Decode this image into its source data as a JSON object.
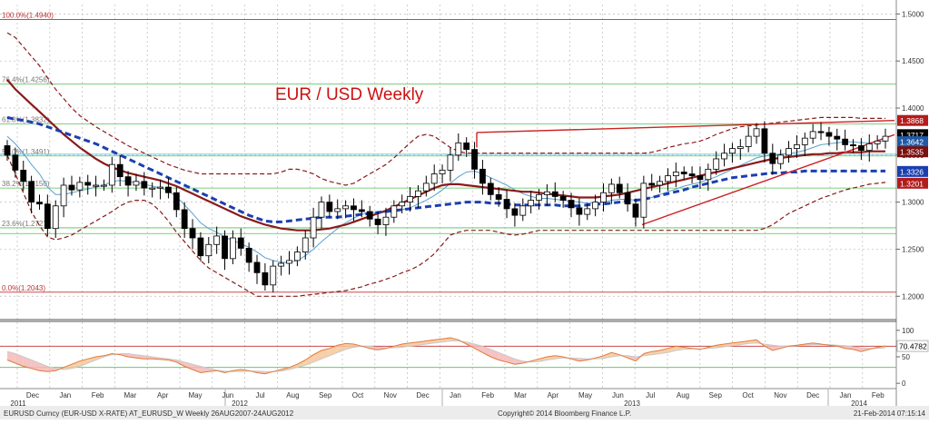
{
  "chart_data": [
    {
      "type": "candlestick",
      "title": "EUR / USD Weekly",
      "x_axis": {
        "months": [
          "Dec",
          "Jan",
          "Feb",
          "Mar",
          "Apr",
          "May",
          "Jun",
          "Jul",
          "Aug",
          "Sep",
          "Oct",
          "Nov",
          "Dec",
          "Jan",
          "Feb",
          "Mar",
          "Apr",
          "May",
          "Jun",
          "Jul",
          "Aug",
          "Sep",
          "Oct",
          "Nov",
          "Dec",
          "Jan",
          "Feb"
        ],
        "years": [
          "2011",
          "2012",
          "2013",
          "2014"
        ]
      },
      "y_axis": {
        "range": [
          1.18,
          1.51
        ],
        "ticks": [
          "1.5000",
          "1.4500",
          "1.4000",
          "1.3500",
          "1.3000",
          "1.2500",
          "1.2000"
        ]
      },
      "fib_levels": [
        {
          "label": "100.0%(1.4940)",
          "value": 1.494
        },
        {
          "label": "76.4%(1.4256)",
          "value": 1.4256
        },
        {
          "label": "61.8%(1.3832)",
          "value": 1.3832
        },
        {
          "label": "50.0%(1.3491)",
          "value": 1.3491
        },
        {
          "label": "38.2%(1.3150)",
          "value": 1.315
        },
        {
          "label": "23.6%(1.2727)",
          "value": 1.2727
        },
        {
          "label": "0.0%(1.2043)",
          "value": 1.2043
        }
      ],
      "price_labels": [
        {
          "text": "1.3868",
          "value": 1.3868,
          "bg": "#b31c1c"
        },
        {
          "text": "1.3717",
          "value": 1.3717,
          "bg": "#000000"
        },
        {
          "text": "1.3642",
          "value": 1.3642,
          "bg": "#1e5aa8"
        },
        {
          "text": "1.3535",
          "value": 1.3535,
          "bg": "#7a1010"
        },
        {
          "text": "1.3326",
          "value": 1.3326,
          "bg": "#1c3fb0"
        },
        {
          "text": "1.3201",
          "value": 1.3201,
          "bg": "#b31c1c"
        }
      ],
      "series": [
        {
          "name": "Close",
          "role": "candles",
          "values": [
            1.35,
            1.334,
            1.322,
            1.3,
            1.298,
            1.272,
            1.296,
            1.318,
            1.313,
            1.321,
            1.318,
            1.318,
            1.318,
            1.34,
            1.327,
            1.318,
            1.322,
            1.315,
            1.315,
            1.316,
            1.31,
            1.292,
            1.272,
            1.262,
            1.243,
            1.255,
            1.264,
            1.24,
            1.262,
            1.251,
            1.236,
            1.225,
            1.212,
            1.232,
            1.235,
            1.238,
            1.247,
            1.262,
            1.284,
            1.3,
            1.29,
            1.293,
            1.296,
            1.292,
            1.29,
            1.282,
            1.276,
            1.284,
            1.296,
            1.3,
            1.306,
            1.312,
            1.32,
            1.33,
            1.334,
            1.35,
            1.363,
            1.356,
            1.335,
            1.32,
            1.308,
            1.303,
            1.293,
            1.286,
            1.296,
            1.302,
            1.308,
            1.311,
            1.306,
            1.302,
            1.294,
            1.287,
            1.293,
            1.3,
            1.31,
            1.319,
            1.31,
            1.298,
            1.284,
            1.32,
            1.318,
            1.322,
            1.328,
            1.332,
            1.33,
            1.328,
            1.324,
            1.335,
            1.346,
            1.352,
            1.357,
            1.359,
            1.37,
            1.378,
            1.352,
            1.341,
            1.35,
            1.357,
            1.361,
            1.368,
            1.375,
            1.374,
            1.37,
            1.367,
            1.361,
            1.36,
            1.355,
            1.362,
            1.365,
            1.37
          ]
        },
        {
          "name": "MA 55",
          "role": "dashed-blue",
          "values": [
            1.39,
            1.388,
            1.387,
            1.385,
            1.383,
            1.38,
            1.377,
            1.374,
            1.371,
            1.368,
            1.365,
            1.362,
            1.358,
            1.354,
            1.35,
            1.346,
            1.342,
            1.338,
            1.334,
            1.33,
            1.326,
            1.322,
            1.318,
            1.314,
            1.31,
            1.306,
            1.302,
            1.298,
            1.294,
            1.29,
            1.286,
            1.283,
            1.28,
            1.279,
            1.279,
            1.28,
            1.281,
            1.282,
            1.283,
            1.284,
            1.284,
            1.284,
            1.285,
            1.286,
            1.287,
            1.288,
            1.289,
            1.29,
            1.291,
            1.292,
            1.293,
            1.294,
            1.295,
            1.296,
            1.297,
            1.298,
            1.299,
            1.3,
            1.3,
            1.3,
            1.299,
            1.299,
            1.298,
            1.297,
            1.297,
            1.297,
            1.297,
            1.297,
            1.297,
            1.296,
            1.296,
            1.296,
            1.297,
            1.298,
            1.298,
            1.299,
            1.3,
            1.301,
            1.302,
            1.303,
            1.305,
            1.307,
            1.309,
            1.311,
            1.313,
            1.316,
            1.318,
            1.32,
            1.322,
            1.324,
            1.326,
            1.327,
            1.328,
            1.329,
            1.33,
            1.331,
            1.331,
            1.332,
            1.332,
            1.333,
            1.333,
            1.333,
            1.333,
            1.333,
            1.333,
            1.333,
            1.333,
            1.333,
            1.333,
            1.333
          ]
        },
        {
          "name": "MA 21",
          "role": "solid-dark-red",
          "values": [
            1.43,
            1.42,
            1.412,
            1.404,
            1.396,
            1.388,
            1.38,
            1.372,
            1.365,
            1.358,
            1.352,
            1.346,
            1.341,
            1.337,
            1.334,
            1.331,
            1.329,
            1.327,
            1.325,
            1.323,
            1.32,
            1.317,
            1.313,
            1.309,
            1.305,
            1.301,
            1.297,
            1.293,
            1.289,
            1.285,
            1.282,
            1.279,
            1.276,
            1.274,
            1.272,
            1.271,
            1.27,
            1.27,
            1.27,
            1.271,
            1.272,
            1.274,
            1.276,
            1.279,
            1.282,
            1.285,
            1.288,
            1.291,
            1.295,
            1.299,
            1.303,
            1.307,
            1.311,
            1.315,
            1.318,
            1.319,
            1.319,
            1.318,
            1.317,
            1.316,
            1.315,
            1.314,
            1.313,
            1.312,
            1.311,
            1.311,
            1.31,
            1.309,
            1.308,
            1.307,
            1.306,
            1.305,
            1.305,
            1.305,
            1.306,
            1.307,
            1.308,
            1.31,
            1.312,
            1.314,
            1.316,
            1.318,
            1.32,
            1.322,
            1.324,
            1.326,
            1.328,
            1.33,
            1.332,
            1.334,
            1.336,
            1.338,
            1.34,
            1.342,
            1.344,
            1.346,
            1.347,
            1.348,
            1.349,
            1.35,
            1.351,
            1.351,
            1.352,
            1.352,
            1.353,
            1.353,
            1.353,
            1.354,
            1.354,
            1.354
          ]
        },
        {
          "name": "MA 10",
          "role": "thin-blue",
          "values": [
            1.37,
            1.362,
            1.352,
            1.34,
            1.33,
            1.316,
            1.308,
            1.308,
            1.31,
            1.312,
            1.314,
            1.316,
            1.318,
            1.322,
            1.323,
            1.322,
            1.321,
            1.319,
            1.317,
            1.315,
            1.312,
            1.306,
            1.297,
            1.288,
            1.278,
            1.272,
            1.268,
            1.263,
            1.259,
            1.256,
            1.252,
            1.247,
            1.241,
            1.238,
            1.236,
            1.236,
            1.238,
            1.243,
            1.25,
            1.258,
            1.265,
            1.272,
            1.278,
            1.283,
            1.287,
            1.289,
            1.289,
            1.289,
            1.29,
            1.292,
            1.294,
            1.298,
            1.302,
            1.307,
            1.313,
            1.32,
            1.327,
            1.332,
            1.333,
            1.33,
            1.326,
            1.322,
            1.318,
            1.313,
            1.309,
            1.306,
            1.304,
            1.304,
            1.303,
            1.302,
            1.301,
            1.3,
            1.299,
            1.299,
            1.3,
            1.302,
            1.303,
            1.303,
            1.302,
            1.303,
            1.305,
            1.308,
            1.311,
            1.314,
            1.317,
            1.319,
            1.321,
            1.324,
            1.327,
            1.331,
            1.335,
            1.339,
            1.343,
            1.347,
            1.349,
            1.35,
            1.351,
            1.352,
            1.353,
            1.355,
            1.358,
            1.361,
            1.362,
            1.363,
            1.364,
            1.364,
            1.363,
            1.363,
            1.364,
            1.365
          ]
        },
        {
          "name": "Upper band",
          "role": "dashed-dark-red",
          "values": [
            1.48,
            1.475,
            1.465,
            1.455,
            1.445,
            1.432,
            1.42,
            1.41,
            1.4,
            1.392,
            1.386,
            1.38,
            1.375,
            1.37,
            1.365,
            1.36,
            1.356,
            1.352,
            1.348,
            1.344,
            1.34,
            1.337,
            1.334,
            1.332,
            1.33,
            1.33,
            1.33,
            1.33,
            1.33,
            1.33,
            1.33,
            1.33,
            1.33,
            1.33,
            1.332,
            1.335,
            1.335,
            1.333,
            1.33,
            1.325,
            1.322,
            1.32,
            1.318,
            1.32,
            1.325,
            1.33,
            1.335,
            1.34,
            1.347,
            1.355,
            1.363,
            1.37,
            1.372,
            1.37,
            1.364,
            1.358,
            1.354,
            1.352,
            1.352,
            1.352,
            1.352,
            1.352,
            1.352,
            1.352,
            1.352,
            1.352,
            1.352,
            1.352,
            1.352,
            1.352,
            1.352,
            1.352,
            1.352,
            1.352,
            1.352,
            1.352,
            1.352,
            1.352,
            1.352,
            1.352,
            1.353,
            1.355,
            1.358,
            1.36,
            1.362,
            1.363,
            1.365,
            1.368,
            1.372,
            1.375,
            1.378,
            1.38,
            1.381,
            1.382,
            1.383,
            1.384,
            1.385,
            1.386,
            1.387,
            1.388,
            1.389,
            1.39,
            1.39,
            1.39,
            1.39,
            1.39,
            1.389,
            1.389,
            1.389,
            1.389
          ]
        },
        {
          "name": "Lower band",
          "role": "dashed-dark-red",
          "values": [
            1.35,
            1.33,
            1.31,
            1.29,
            1.275,
            1.263,
            1.26,
            1.262,
            1.265,
            1.27,
            1.275,
            1.28,
            1.285,
            1.29,
            1.296,
            1.3,
            1.302,
            1.302,
            1.298,
            1.29,
            1.28,
            1.268,
            1.258,
            1.248,
            1.238,
            1.23,
            1.225,
            1.22,
            1.215,
            1.21,
            1.205,
            1.2,
            1.2,
            1.2,
            1.2,
            1.2,
            1.2,
            1.201,
            1.202,
            1.203,
            1.204,
            1.205,
            1.206,
            1.208,
            1.21,
            1.213,
            1.215,
            1.218,
            1.221,
            1.225,
            1.228,
            1.232,
            1.238,
            1.245,
            1.255,
            1.265,
            1.268,
            1.27,
            1.27,
            1.27,
            1.27,
            1.268,
            1.266,
            1.265,
            1.266,
            1.268,
            1.27,
            1.27,
            1.27,
            1.27,
            1.27,
            1.27,
            1.27,
            1.27,
            1.27,
            1.27,
            1.27,
            1.27,
            1.27,
            1.27,
            1.27,
            1.27,
            1.27,
            1.27,
            1.27,
            1.27,
            1.27,
            1.27,
            1.27,
            1.27,
            1.27,
            1.27,
            1.27,
            1.27,
            1.272,
            1.276,
            1.282,
            1.288,
            1.292,
            1.296,
            1.3,
            1.304,
            1.307,
            1.31,
            1.313,
            1.315,
            1.317,
            1.319,
            1.32,
            1.321
          ]
        }
      ]
    },
    {
      "type": "line",
      "name": "RSI",
      "y_axis": {
        "range": [
          -10,
          110
        ],
        "ticks": [
          "100",
          "50",
          "0"
        ]
      },
      "levels": [
        70,
        30
      ],
      "value_label": {
        "text": "70.4782",
        "value": 70.4782
      },
      "series": [
        {
          "name": "RSI",
          "values": [
            44,
            38,
            32,
            28,
            24,
            22,
            24,
            30,
            36,
            42,
            46,
            50,
            52,
            56,
            54,
            50,
            48,
            46,
            46,
            45,
            44,
            40,
            32,
            26,
            20,
            22,
            24,
            20,
            24,
            26,
            24,
            20,
            18,
            22,
            26,
            30,
            36,
            44,
            54,
            62,
            66,
            72,
            75,
            74,
            70,
            66,
            63,
            66,
            70,
            74,
            76,
            78,
            80,
            82,
            84,
            86,
            82,
            74,
            66,
            58,
            50,
            44,
            40,
            36,
            38,
            42,
            46,
            50,
            52,
            50,
            46,
            42,
            44,
            48,
            52,
            58,
            54,
            48,
            42,
            56,
            60,
            62,
            66,
            70,
            68,
            66,
            64,
            68,
            72,
            74,
            76,
            78,
            80,
            82,
            70,
            62,
            66,
            70,
            72,
            74,
            76,
            74,
            72,
            70,
            66,
            64,
            60,
            64,
            68,
            70.5
          ]
        },
        {
          "name": "RSI signal",
          "values": [
            60,
            56,
            50,
            44,
            38,
            32,
            28,
            26,
            28,
            32,
            38,
            44,
            50,
            54,
            56,
            56,
            54,
            52,
            50,
            48,
            46,
            44,
            40,
            36,
            32,
            28,
            25,
            23,
            22,
            22,
            23,
            23,
            22,
            22,
            23,
            26,
            30,
            34,
            40,
            46,
            52,
            58,
            64,
            68,
            70,
            70,
            68,
            67,
            67,
            68,
            70,
            72,
            74,
            76,
            78,
            80,
            80,
            78,
            74,
            70,
            64,
            58,
            52,
            46,
            42,
            40,
            41,
            44,
            46,
            48,
            48,
            47,
            46,
            46,
            47,
            50,
            52,
            52,
            50,
            52,
            54,
            56,
            58,
            62,
            64,
            65,
            65,
            66,
            67,
            69,
            71,
            73,
            75,
            76,
            74,
            72,
            70,
            70,
            71,
            72,
            73,
            73,
            73,
            72,
            71,
            69,
            67,
            66,
            66,
            67
          ]
        }
      ]
    }
  ],
  "footer": {
    "left": "EURUSD Curncy (EUR-USD X-RATE) AT_EURUSD_W  Weekly 26AUG2007-24AUG2012",
    "center": "Copyright© 2014 Bloomberg Finance L.P.",
    "right": "21-Feb-2014 07:15:14"
  },
  "colors": {
    "candle_up": "#ffffff",
    "candle_down": "#000000",
    "ma55": "#1c3fb0",
    "ma21": "#8a1a1a",
    "ma10": "#5aa0d0",
    "bands": "#8a1a1a",
    "trendline": "#cc2222",
    "fib_green": "#55c055",
    "fib_red": "#c03030",
    "title_red": "#cc1111",
    "rsi_line": "#e07a3a",
    "rsi_signal": "#c9c9c9"
  }
}
